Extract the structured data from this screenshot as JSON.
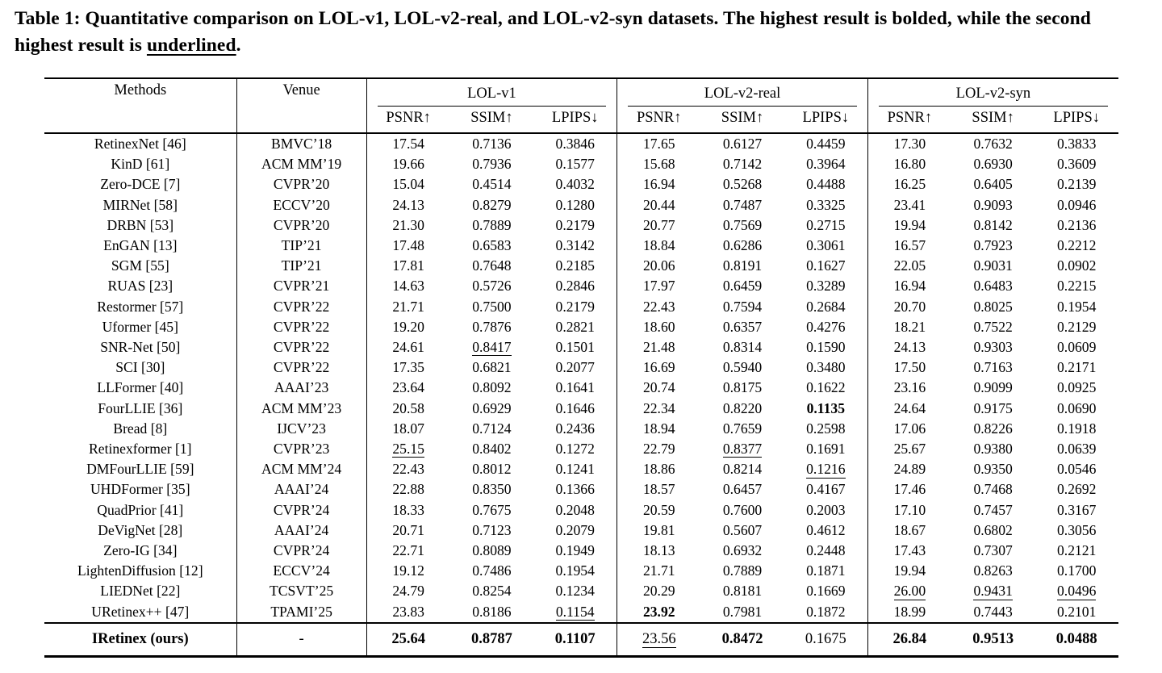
{
  "caption": {
    "prefix": "Table 1: ",
    "body": "Quantitative comparison on LOL-v1, LOL-v2-real, and LOL-v2-syn datasets. The highest result is bolded, while the second highest result is ",
    "underlined_word": "underlined",
    "suffix": "."
  },
  "table": {
    "col_headers": {
      "methods": "Methods",
      "venue": "Venue",
      "groups": [
        "LOL-v1",
        "LOL-v2-real",
        "LOL-v2-syn"
      ],
      "metrics": [
        "PSNR↑",
        "SSIM↑",
        "LPIPS↓"
      ]
    },
    "rows": [
      {
        "method": "RetinexNet [46]",
        "venue": "BMVC’18",
        "values": [
          "17.54",
          "0.7136",
          "0.3846",
          "17.65",
          "0.6127",
          "0.4459",
          "17.30",
          "0.7632",
          "0.3833"
        ],
        "fmt": [
          "",
          "",
          "",
          "",
          "",
          "",
          "",
          "",
          ""
        ]
      },
      {
        "method": "KinD [61]",
        "venue": "ACM MM’19",
        "values": [
          "19.66",
          "0.7936",
          "0.1577",
          "15.68",
          "0.7142",
          "0.3964",
          "16.80",
          "0.6930",
          "0.3609"
        ],
        "fmt": [
          "",
          "",
          "",
          "",
          "",
          "",
          "",
          "",
          ""
        ]
      },
      {
        "method": "Zero-DCE [7]",
        "venue": "CVPR’20",
        "values": [
          "15.04",
          "0.4514",
          "0.4032",
          "16.94",
          "0.5268",
          "0.4488",
          "16.25",
          "0.6405",
          "0.2139"
        ],
        "fmt": [
          "",
          "",
          "",
          "",
          "",
          "",
          "",
          "",
          ""
        ]
      },
      {
        "method": "MIRNet [58]",
        "venue": "ECCV’20",
        "values": [
          "24.13",
          "0.8279",
          "0.1280",
          "20.44",
          "0.7487",
          "0.3325",
          "23.41",
          "0.9093",
          "0.0946"
        ],
        "fmt": [
          "",
          "",
          "",
          "",
          "",
          "",
          "",
          "",
          ""
        ]
      },
      {
        "method": "DRBN [53]",
        "venue": "CVPR’20",
        "values": [
          "21.30",
          "0.7889",
          "0.2179",
          "20.77",
          "0.7569",
          "0.2715",
          "19.94",
          "0.8142",
          "0.2136"
        ],
        "fmt": [
          "",
          "",
          "",
          "",
          "",
          "",
          "",
          "",
          ""
        ]
      },
      {
        "method": "EnGAN [13]",
        "venue": "TIP’21",
        "values": [
          "17.48",
          "0.6583",
          "0.3142",
          "18.84",
          "0.6286",
          "0.3061",
          "16.57",
          "0.7923",
          "0.2212"
        ],
        "fmt": [
          "",
          "",
          "",
          "",
          "",
          "",
          "",
          "",
          ""
        ]
      },
      {
        "method": "SGM [55]",
        "venue": "TIP’21",
        "values": [
          "17.81",
          "0.7648",
          "0.2185",
          "20.06",
          "0.8191",
          "0.1627",
          "22.05",
          "0.9031",
          "0.0902"
        ],
        "fmt": [
          "",
          "",
          "",
          "",
          "",
          "",
          "",
          "",
          ""
        ]
      },
      {
        "method": "RUAS [23]",
        "venue": "CVPR’21",
        "values": [
          "14.63",
          "0.5726",
          "0.2846",
          "17.97",
          "0.6459",
          "0.3289",
          "16.94",
          "0.6483",
          "0.2215"
        ],
        "fmt": [
          "",
          "",
          "",
          "",
          "",
          "",
          "",
          "",
          ""
        ]
      },
      {
        "method": "Restormer [57]",
        "venue": "CVPR’22",
        "values": [
          "21.71",
          "0.7500",
          "0.2179",
          "22.43",
          "0.7594",
          "0.2684",
          "20.70",
          "0.8025",
          "0.1954"
        ],
        "fmt": [
          "",
          "",
          "",
          "",
          "",
          "",
          "",
          "",
          ""
        ]
      },
      {
        "method": "Uformer [45]",
        "venue": "CVPR’22",
        "values": [
          "19.20",
          "0.7876",
          "0.2821",
          "18.60",
          "0.6357",
          "0.4276",
          "18.21",
          "0.7522",
          "0.2129"
        ],
        "fmt": [
          "",
          "",
          "",
          "",
          "",
          "",
          "",
          "",
          ""
        ]
      },
      {
        "method": "SNR-Net [50]",
        "venue": "CVPR’22",
        "values": [
          "24.61",
          "0.8417",
          "0.1501",
          "21.48",
          "0.8314",
          "0.1590",
          "24.13",
          "0.9303",
          "0.0609"
        ],
        "fmt": [
          "",
          "u",
          "",
          "",
          "",
          "",
          "",
          "",
          ""
        ]
      },
      {
        "method": "SCI [30]",
        "venue": "CVPR’22",
        "values": [
          "17.35",
          "0.6821",
          "0.2077",
          "16.69",
          "0.5940",
          "0.3480",
          "17.50",
          "0.7163",
          "0.2171"
        ],
        "fmt": [
          "",
          "",
          "",
          "",
          "",
          "",
          "",
          "",
          ""
        ]
      },
      {
        "method": "LLFormer [40]",
        "venue": "AAAI’23",
        "values": [
          "23.64",
          "0.8092",
          "0.1641",
          "20.74",
          "0.8175",
          "0.1622",
          "23.16",
          "0.9099",
          "0.0925"
        ],
        "fmt": [
          "",
          "",
          "",
          "",
          "",
          "",
          "",
          "",
          ""
        ]
      },
      {
        "method": "FourLLIE [36]",
        "venue": "ACM MM’23",
        "values": [
          "20.58",
          "0.6929",
          "0.1646",
          "22.34",
          "0.8220",
          "0.1135",
          "24.64",
          "0.9175",
          "0.0690"
        ],
        "fmt": [
          "",
          "",
          "",
          "",
          "",
          "b",
          "",
          "",
          ""
        ]
      },
      {
        "method": "Bread [8]",
        "venue": "IJCV’23",
        "values": [
          "18.07",
          "0.7124",
          "0.2436",
          "18.94",
          "0.7659",
          "0.2598",
          "17.06",
          "0.8226",
          "0.1918"
        ],
        "fmt": [
          "",
          "",
          "",
          "",
          "",
          "",
          "",
          "",
          ""
        ]
      },
      {
        "method": "Retinexformer [1]",
        "venue": "CVPR’23",
        "values": [
          "25.15",
          "0.8402",
          "0.1272",
          "22.79",
          "0.8377",
          "0.1691",
          "25.67",
          "0.9380",
          "0.0639"
        ],
        "fmt": [
          "u",
          "",
          "",
          "",
          "u",
          "",
          "",
          "",
          ""
        ]
      },
      {
        "method": "DMFourLLIE [59]",
        "venue": "ACM MM’24",
        "values": [
          "22.43",
          "0.8012",
          "0.1241",
          "18.86",
          "0.8214",
          "0.1216",
          "24.89",
          "0.9350",
          "0.0546"
        ],
        "fmt": [
          "",
          "",
          "",
          "",
          "",
          "u",
          "",
          "",
          ""
        ]
      },
      {
        "method": "UHDFormer [35]",
        "venue": "AAAI’24",
        "values": [
          "22.88",
          "0.8350",
          "0.1366",
          "18.57",
          "0.6457",
          "0.4167",
          "17.46",
          "0.7468",
          "0.2692"
        ],
        "fmt": [
          "",
          "",
          "",
          "",
          "",
          "",
          "",
          "",
          ""
        ]
      },
      {
        "method": "QuadPrior [41]",
        "venue": "CVPR’24",
        "values": [
          "18.33",
          "0.7675",
          "0.2048",
          "20.59",
          "0.7600",
          "0.2003",
          "17.10",
          "0.7457",
          "0.3167"
        ],
        "fmt": [
          "",
          "",
          "",
          "",
          "",
          "",
          "",
          "",
          ""
        ]
      },
      {
        "method": "DeVigNet [28]",
        "venue": "AAAI’24",
        "values": [
          "20.71",
          "0.7123",
          "0.2079",
          "19.81",
          "0.5607",
          "0.4612",
          "18.67",
          "0.6802",
          "0.3056"
        ],
        "fmt": [
          "",
          "",
          "",
          "",
          "",
          "",
          "",
          "",
          ""
        ]
      },
      {
        "method": "Zero-IG [34]",
        "venue": "CVPR’24",
        "values": [
          "22.71",
          "0.8089",
          "0.1949",
          "18.13",
          "0.6932",
          "0.2448",
          "17.43",
          "0.7307",
          "0.2121"
        ],
        "fmt": [
          "",
          "",
          "",
          "",
          "",
          "",
          "",
          "",
          ""
        ]
      },
      {
        "method": "LightenDiffusion [12]",
        "venue": "ECCV’24",
        "values": [
          "19.12",
          "0.7486",
          "0.1954",
          "21.71",
          "0.7889",
          "0.1871",
          "19.94",
          "0.8263",
          "0.1700"
        ],
        "fmt": [
          "",
          "",
          "",
          "",
          "",
          "",
          "",
          "",
          ""
        ]
      },
      {
        "method": "LIEDNet [22]",
        "venue": "TCSVT’25",
        "values": [
          "24.79",
          "0.8254",
          "0.1234",
          "20.29",
          "0.8181",
          "0.1669",
          "26.00",
          "0.9431",
          "0.0496"
        ],
        "fmt": [
          "",
          "",
          "",
          "",
          "",
          "",
          "u",
          "u",
          "u"
        ]
      },
      {
        "method": "URetinex++ [47]",
        "venue": "TPAMI’25",
        "values": [
          "23.83",
          "0.8186",
          "0.1154",
          "23.92",
          "0.7981",
          "0.1872",
          "18.99",
          "0.7443",
          "0.2101"
        ],
        "fmt": [
          "",
          "",
          "u",
          "b",
          "",
          "",
          "",
          "",
          ""
        ]
      }
    ],
    "final_row": {
      "method": "IRetinex (ours)",
      "venue": "-",
      "values": [
        "25.64",
        "0.8787",
        "0.1107",
        "23.56",
        "0.8472",
        "0.1675",
        "26.84",
        "0.9513",
        "0.0488"
      ],
      "fmt": [
        "b",
        "b",
        "b",
        "u",
        "b",
        "",
        "b",
        "b",
        "b"
      ]
    }
  }
}
